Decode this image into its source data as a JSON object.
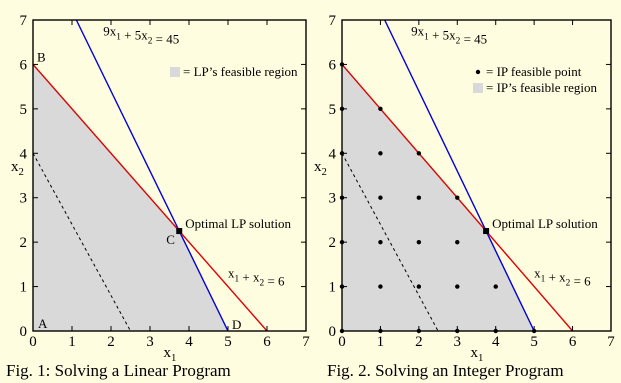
{
  "chart_data": [
    {
      "type": "line",
      "caption": "Fig. 1:  Solving a Linear Program",
      "xlabel": "x1",
      "ylabel": "x2",
      "xlim": [
        0,
        7
      ],
      "ylim": [
        0,
        7
      ],
      "x_ticks": [
        0,
        1,
        2,
        3,
        4,
        5,
        6,
        7
      ],
      "y_ticks": [
        0,
        1,
        2,
        3,
        4,
        5,
        6,
        7
      ],
      "background_color": "#fffde0",
      "grid": false,
      "series": [
        {
          "name": "9x1 + 5x2 = 45",
          "color": "#0000e0",
          "points": [
            [
              2.2222,
              5
            ],
            [
              5,
              0
            ]
          ]
        },
        {
          "name": "x1 + x2 = 6",
          "color": "#e00000",
          "points": [
            [
              0,
              6
            ],
            [
              6,
              0
            ]
          ]
        },
        {
          "name": "",
          "color": "#000000",
          "style": "dashed",
          "points": [
            [
              0,
              4
            ],
            [
              2.5,
              0
            ]
          ]
        }
      ],
      "feasible_region": {
        "color": "#d9d9d9",
        "polygon": [
          [
            0,
            0
          ],
          [
            0,
            6
          ],
          [
            3.75,
            2.25
          ],
          [
            5,
            0
          ]
        ]
      },
      "optimal_point": [
        3.75,
        2.25
      ],
      "legend": [
        {
          "symbol": "square",
          "label": "= LP’s feasible region"
        }
      ],
      "point_labels": [
        {
          "text": "B",
          "x": 0,
          "y": 6
        },
        {
          "text": "C",
          "x": 3.75,
          "y": 2.25
        },
        {
          "text": "A",
          "x": 0,
          "y": 0
        },
        {
          "text": "D",
          "x": 5,
          "y": 0
        }
      ],
      "annotations": [
        {
          "text": "Optimal LP solution",
          "x": 3.75,
          "y": 2.25
        }
      ],
      "line_labels": [
        {
          "text": "9x1 + 5x2 = 45"
        },
        {
          "text": "x1 + x2 = 6"
        }
      ]
    },
    {
      "type": "scatter",
      "caption": "Fig. 2.  Solving an Integer Program",
      "xlabel": "x1",
      "ylabel": "x2",
      "xlim": [
        0,
        7
      ],
      "ylim": [
        0,
        7
      ],
      "x_ticks": [
        0,
        1,
        2,
        3,
        4,
        5,
        6,
        7
      ],
      "y_ticks": [
        0,
        1,
        2,
        3,
        4,
        5,
        6,
        7
      ],
      "background_color": "#fffde0",
      "grid": false,
      "series": [
        {
          "name": "9x1 + 5x2 = 45",
          "color": "#0000e0",
          "points": [
            [
              2.2222,
              5
            ],
            [
              5,
              0
            ]
          ]
        },
        {
          "name": "x1 + x2 = 6",
          "color": "#e00000",
          "points": [
            [
              0,
              6
            ],
            [
              6,
              0
            ]
          ]
        },
        {
          "name": "",
          "color": "#000000",
          "style": "dashed",
          "points": [
            [
              0,
              4
            ],
            [
              2.5,
              0
            ]
          ]
        }
      ],
      "feasible_region": {
        "color": "#d9d9d9",
        "polygon": [
          [
            0,
            0
          ],
          [
            0,
            6
          ],
          [
            3.75,
            2.25
          ],
          [
            5,
            0
          ]
        ]
      },
      "ip_points": [
        [
          0,
          0
        ],
        [
          1,
          0
        ],
        [
          2,
          0
        ],
        [
          3,
          0
        ],
        [
          4,
          0
        ],
        [
          5,
          0
        ],
        [
          0,
          1
        ],
        [
          1,
          1
        ],
        [
          2,
          1
        ],
        [
          3,
          1
        ],
        [
          4,
          1
        ],
        [
          0,
          2
        ],
        [
          1,
          2
        ],
        [
          2,
          2
        ],
        [
          3,
          2
        ],
        [
          0,
          3
        ],
        [
          1,
          3
        ],
        [
          2,
          3
        ],
        [
          3,
          3
        ],
        [
          0,
          4
        ],
        [
          1,
          4
        ],
        [
          2,
          4
        ],
        [
          0,
          5
        ],
        [
          1,
          5
        ],
        [
          0,
          6
        ]
      ],
      "optimal_point": [
        3.75,
        2.25
      ],
      "legend": [
        {
          "symbol": "dot",
          "label": "= IP feasible point"
        },
        {
          "symbol": "square",
          "label": "= IP’s feasible region"
        }
      ],
      "annotations": [
        {
          "text": "Optimal LP solution",
          "x": 3.75,
          "y": 2.25
        }
      ],
      "line_labels": [
        {
          "text": "9x1 + 5x2 = 45"
        },
        {
          "text": "x1 + x2 = 6"
        }
      ]
    }
  ]
}
